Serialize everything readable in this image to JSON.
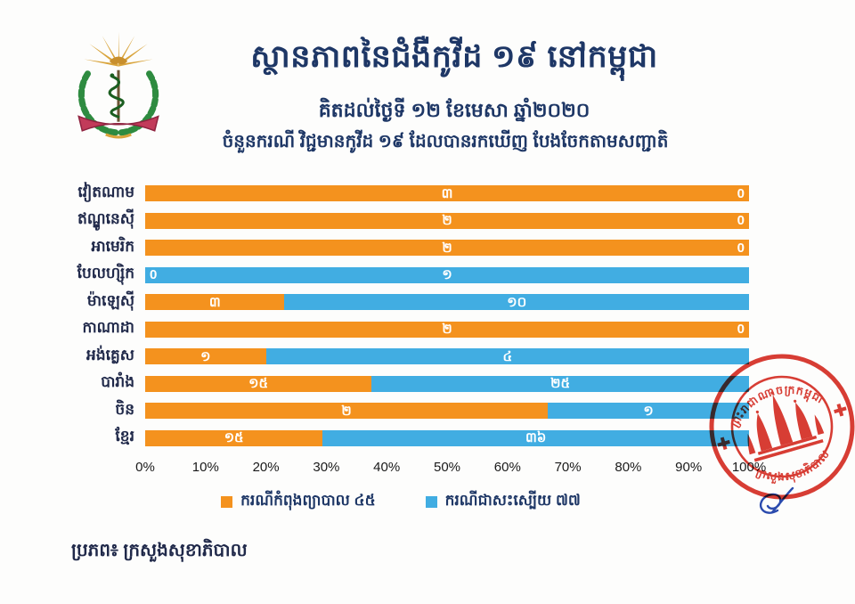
{
  "page": {
    "background": "#FDFDFC"
  },
  "header": {
    "title": "ស្ថានភាពនៃជំងឺកូវីដ ១៩ នៅកម្ពុជា",
    "date_line": "គិតដល់ថ្ងៃទី ១២ ខែមេសា ឆ្នាំ២០២០",
    "description": "ចំនួនករណី វិជ្ជមានកូវីដ ១៩ ដែលបានរកឃើញ បែងចែកតាមសញ្ជាតិ"
  },
  "logo": {
    "name": "ministry-of-health-cambodia-emblem"
  },
  "chart_data": {
    "type": "bar",
    "orientation": "horizontal",
    "stacked": true,
    "percent_of_row_total": true,
    "title": "ចំនួនករណី វិជ្ជមានកូវីដ ១៩ ដែលបានរកឃើញ បែងចែកតាមសញ្ជាតិ",
    "categories": [
      "វៀតណាម",
      "ឥណ្ឌូនេស៊ី",
      "អាមេរិក",
      "បែលហ្ស៊ិក",
      "ម៉ាឡេស៊ី",
      "កាណាដា",
      "អង់គ្លេស",
      "បារាំង",
      "ចិន",
      "ខ្មែរ"
    ],
    "series": [
      {
        "name": "ករណីកំពុងព្យាបាល ៤៥",
        "total": 45,
        "color": "#F4921E",
        "values": [
          3,
          2,
          2,
          0,
          3,
          2,
          1,
          15,
          2,
          15
        ],
        "labels": [
          "៣",
          "២",
          "២",
          "0",
          "៣",
          "២",
          "១",
          "១៥",
          "២",
          "១៥"
        ]
      },
      {
        "name": "ករណីជាសះស្បើយ ៧៧",
        "total": 77,
        "color": "#41ADE2",
        "values": [
          0,
          0,
          0,
          1,
          10,
          0,
          4,
          25,
          1,
          36
        ],
        "labels": [
          "0",
          "0",
          "0",
          "១",
          "១០",
          "0",
          "៤",
          "២៥",
          "១",
          "៣៦"
        ]
      }
    ],
    "x_ticks": [
      "0%",
      "10%",
      "20%",
      "30%",
      "40%",
      "50%",
      "60%",
      "70%",
      "80%",
      "90%",
      "100%"
    ],
    "xlim": [
      0,
      100
    ],
    "grid": false,
    "legend_position": "bottom"
  },
  "footer": {
    "source": "ប្រភព៖ ក្រសួងសុខាភិបាល"
  },
  "stamp": {
    "top_text": "ព្រះរាជាណាចក្រកម្ពុជា",
    "bottom_text": "ក្រសួងសុខាភិបាល",
    "color": "#D5281E"
  },
  "signature": {
    "color": "#2B4BAE"
  },
  "colors": {
    "treating": "#F4921E",
    "recovered": "#41ADE2",
    "heading": "#1E3766",
    "axis_text": "#1A1A1A"
  }
}
